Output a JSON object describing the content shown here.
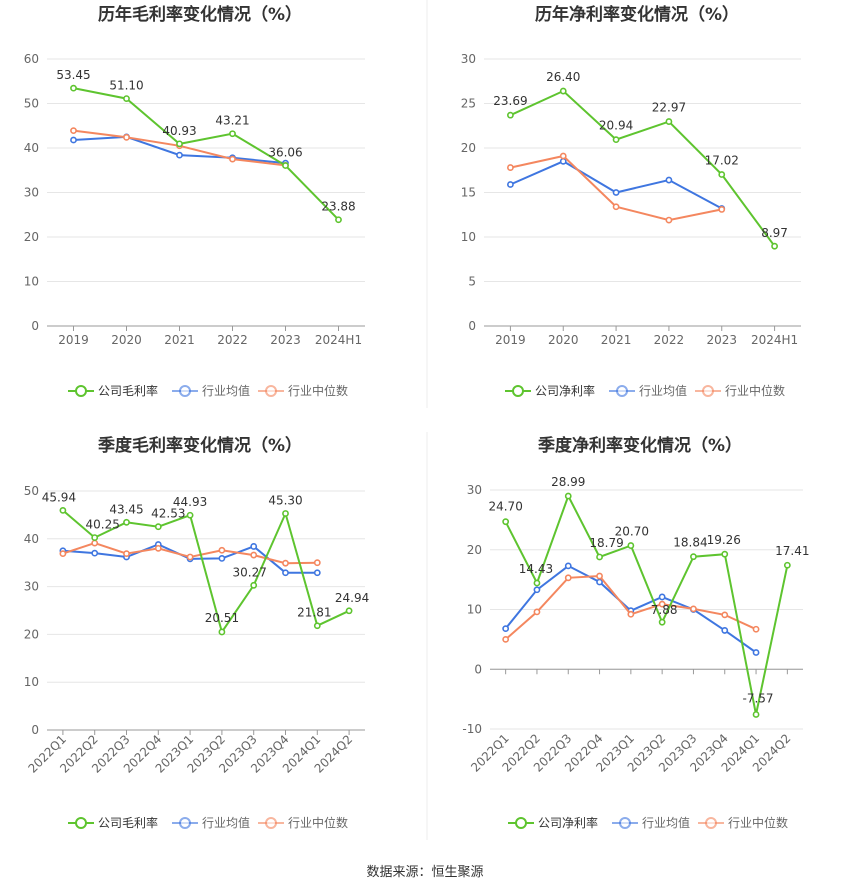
{
  "source_label": "数据来源：恒生聚源",
  "legend_labels": {
    "industry_avg": "行业均值",
    "industry_median": "行业中位数"
  },
  "colors": {
    "company": "#5ec42f",
    "industry_avg": "#3f76e0",
    "industry_median": "#f4875f"
  },
  "chart_data": [
    {
      "type": "line",
      "title": "历年毛利率变化情况（%）",
      "categories": [
        "2019",
        "2020",
        "2021",
        "2022",
        "2023",
        "2024H1"
      ],
      "ylim": [
        0,
        60
      ],
      "yticks": [
        0,
        10,
        20,
        30,
        40,
        50,
        60
      ],
      "series": [
        {
          "name": "公司毛利率",
          "values": [
            53.45,
            51.1,
            40.93,
            43.21,
            36.06,
            23.88
          ],
          "labels": [
            "53.45",
            "51.10",
            "40.93",
            "43.21",
            "36.06",
            "23.88"
          ]
        },
        {
          "name": "行业均值",
          "values": [
            41.8,
            42.5,
            38.4,
            37.8,
            36.6,
            null
          ]
        },
        {
          "name": "行业中位数",
          "values": [
            43.9,
            42.4,
            40.5,
            37.5,
            36.1,
            null
          ]
        }
      ]
    },
    {
      "type": "line",
      "title": "历年净利率变化情况（%）",
      "categories": [
        "2019",
        "2020",
        "2021",
        "2022",
        "2023",
        "2024H1"
      ],
      "ylim": [
        0,
        30
      ],
      "yticks": [
        0,
        5,
        10,
        15,
        20,
        25,
        30
      ],
      "series": [
        {
          "name": "公司净利率",
          "values": [
            23.69,
            26.4,
            20.94,
            22.97,
            17.02,
            8.97
          ],
          "labels": [
            "23.69",
            "26.40",
            "20.94",
            "22.97",
            "17.02",
            "8.97"
          ]
        },
        {
          "name": "行业均值",
          "values": [
            15.9,
            18.5,
            15.0,
            16.4,
            13.2,
            null
          ]
        },
        {
          "name": "行业中位数",
          "values": [
            17.8,
            19.1,
            13.4,
            11.9,
            13.1,
            null
          ]
        }
      ]
    },
    {
      "type": "line",
      "title": "季度毛利率变化情况（%）",
      "categories": [
        "2022Q1",
        "2022Q2",
        "2022Q3",
        "2022Q4",
        "2023Q1",
        "2023Q2",
        "2023Q3",
        "2023Q4",
        "2024Q1",
        "2024Q2"
      ],
      "ylim": [
        0,
        50
      ],
      "yticks": [
        0,
        10,
        20,
        30,
        40,
        50
      ],
      "series": [
        {
          "name": "公司毛利率",
          "values": [
            45.94,
            40.25,
            43.45,
            42.53,
            44.93,
            20.51,
            30.27,
            45.3,
            21.81,
            24.94
          ],
          "labels": [
            "45.94",
            "40.25",
            "43.45",
            "42.53",
            "44.93",
            "20.51",
            "30.27",
            "45.30",
            "21.81",
            "24.94"
          ]
        },
        {
          "name": "行业均值",
          "values": [
            37.5,
            37.0,
            36.2,
            38.8,
            35.8,
            35.9,
            38.4,
            32.9,
            32.9,
            null
          ]
        },
        {
          "name": "行业中位数",
          "values": [
            36.9,
            39.1,
            36.9,
            38.0,
            36.2,
            37.6,
            36.6,
            34.9,
            35.0,
            null
          ]
        }
      ]
    },
    {
      "type": "line",
      "title": "季度净利率变化情况（%）",
      "categories": [
        "2022Q1",
        "2022Q2",
        "2022Q3",
        "2022Q4",
        "2023Q1",
        "2023Q2",
        "2023Q3",
        "2023Q4",
        "2024Q1",
        "2024Q2"
      ],
      "ylim": [
        -10,
        30
      ],
      "yticks": [
        -10,
        0,
        10,
        20,
        30
      ],
      "series": [
        {
          "name": "公司净利率",
          "values": [
            24.7,
            14.43,
            28.99,
            18.79,
            20.7,
            7.88,
            18.84,
            19.26,
            -7.57,
            17.41
          ],
          "labels": [
            "24.70",
            "14.43",
            "28.99",
            "18.79",
            "20.70",
            "7.88",
            "18.84",
            "19.26",
            "-7.57",
            "17.41"
          ]
        },
        {
          "name": "行业均值",
          "values": [
            6.8,
            13.3,
            17.3,
            14.6,
            9.8,
            12.1,
            10.0,
            6.5,
            2.8,
            null
          ]
        },
        {
          "name": "行业中位数",
          "values": [
            5.0,
            9.6,
            15.3,
            15.6,
            9.2,
            10.9,
            10.1,
            9.1,
            6.7,
            null
          ]
        }
      ]
    }
  ]
}
